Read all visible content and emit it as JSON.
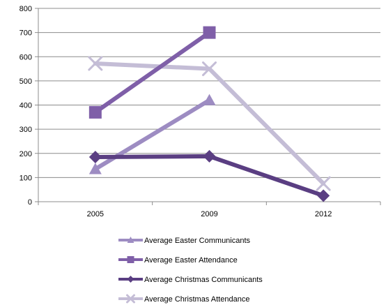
{
  "chart_data": {
    "type": "line",
    "title": "",
    "xlabel": "",
    "ylabel": "",
    "categories": [
      "2005",
      "2009",
      "2012"
    ],
    "ylim": [
      0,
      800
    ],
    "yticks": [
      "0",
      "100",
      "200",
      "300",
      "400",
      "500",
      "600",
      "700",
      "800"
    ],
    "grid": true,
    "legend_position": "bottom",
    "series": [
      {
        "name": "Average Christmas Attendance",
        "values": [
          572,
          550,
          75
        ],
        "color": "#c4bdd6",
        "marker": "x"
      },
      {
        "name": "Average Easter Communicants",
        "values": [
          135,
          420,
          null
        ],
        "color": "#9d8cc2",
        "marker": "triangle"
      },
      {
        "name": "Average Easter Attendance",
        "values": [
          370,
          700,
          null
        ],
        "color": "#7f5fa8",
        "marker": "square"
      },
      {
        "name": "Average Christmas Communicants",
        "values": [
          185,
          188,
          25
        ],
        "color": "#5a3e82",
        "marker": "diamond"
      }
    ],
    "legend_order": [
      1,
      2,
      3,
      0
    ]
  }
}
